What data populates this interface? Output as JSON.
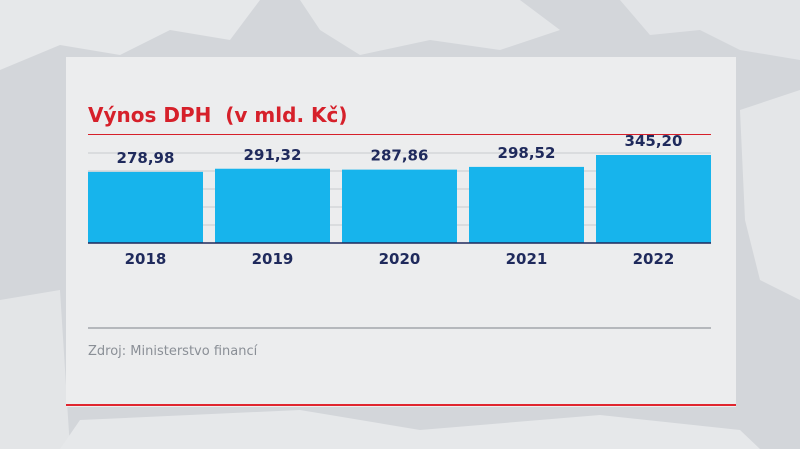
{
  "title": "Výnos DPH  (v mld. Kč)",
  "source": "Zdroj: Ministerstvo financí",
  "colors": {
    "title": "#d6202a",
    "bar": "#17b4ec",
    "label": "#1f2a5c",
    "axis": "#1f2a5c"
  },
  "chart_data": {
    "type": "bar",
    "title": "Výnos DPH  (v mld. Kč)",
    "categories": [
      "2018",
      "2019",
      "2020",
      "2021",
      "2022"
    ],
    "values": [
      278.98,
      291.32,
      287.86,
      298.52,
      345.2
    ],
    "value_labels": [
      "278,98",
      "291,32",
      "287,86",
      "298,52",
      "345,20"
    ],
    "ylim": [
      0,
      345.2
    ],
    "grid": true,
    "xlabel": "",
    "ylabel": ""
  }
}
